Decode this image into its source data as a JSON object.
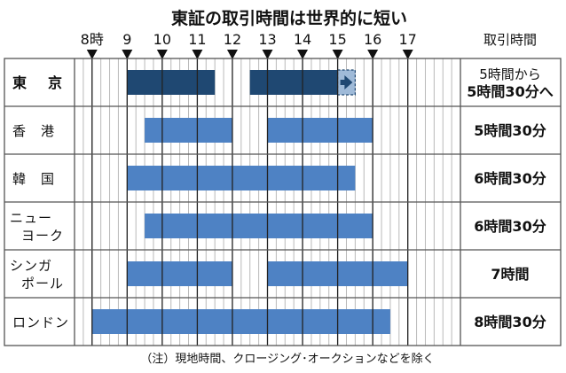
{
  "chart_data": {
    "type": "bar",
    "title": "東証の取引時間は世界的に短い",
    "x_axis": {
      "range": [
        7.5,
        18.5
      ],
      "tick_hours": [
        8,
        9,
        10,
        11,
        12,
        13,
        14,
        15,
        16,
        17
      ],
      "tick_labels": [
        "8時",
        "9",
        "10",
        "11",
        "12",
        "13",
        "14",
        "15",
        "16",
        "17"
      ],
      "minor_step": 0.25
    },
    "duration_header": "取引時間",
    "markets": [
      {
        "lines": [
          "東　京"
        ],
        "bold": true,
        "sessions": [
          [
            9,
            11.5
          ],
          [
            12.5,
            15
          ]
        ],
        "extension": [
          15,
          15.5
        ],
        "duration_lines": [
          "5時間から",
          "5時間30分へ"
        ]
      },
      {
        "lines": [
          "香　港"
        ],
        "sessions": [
          [
            9.5,
            12
          ],
          [
            13,
            16
          ]
        ],
        "duration_lines": [
          "5時間30分"
        ]
      },
      {
        "lines": [
          "韓　国"
        ],
        "sessions": [
          [
            9,
            15.5
          ]
        ],
        "duration_lines": [
          "6時間30分"
        ]
      },
      {
        "lines": [
          "ニュー",
          "ヨーク"
        ],
        "sessions": [
          [
            9.5,
            16
          ]
        ],
        "duration_lines": [
          "6時間30分"
        ]
      },
      {
        "lines": [
          "シンガ",
          "ポール"
        ],
        "sessions": [
          [
            9,
            12
          ],
          [
            13,
            17
          ]
        ],
        "duration_lines": [
          "7時間"
        ]
      },
      {
        "lines": [
          "ロンドン"
        ],
        "sessions": [
          [
            8,
            16.5
          ]
        ],
        "duration_lines": [
          "8時間30分"
        ]
      }
    ],
    "note": "（注）現地時間、クロージング･オークションなどを除く",
    "colors": {
      "tokyo_bar": "#1f4872",
      "bar": "#4e82c4",
      "extension": "#9fbad8",
      "grid": "#b9b9b9",
      "frame": "#555555"
    }
  }
}
